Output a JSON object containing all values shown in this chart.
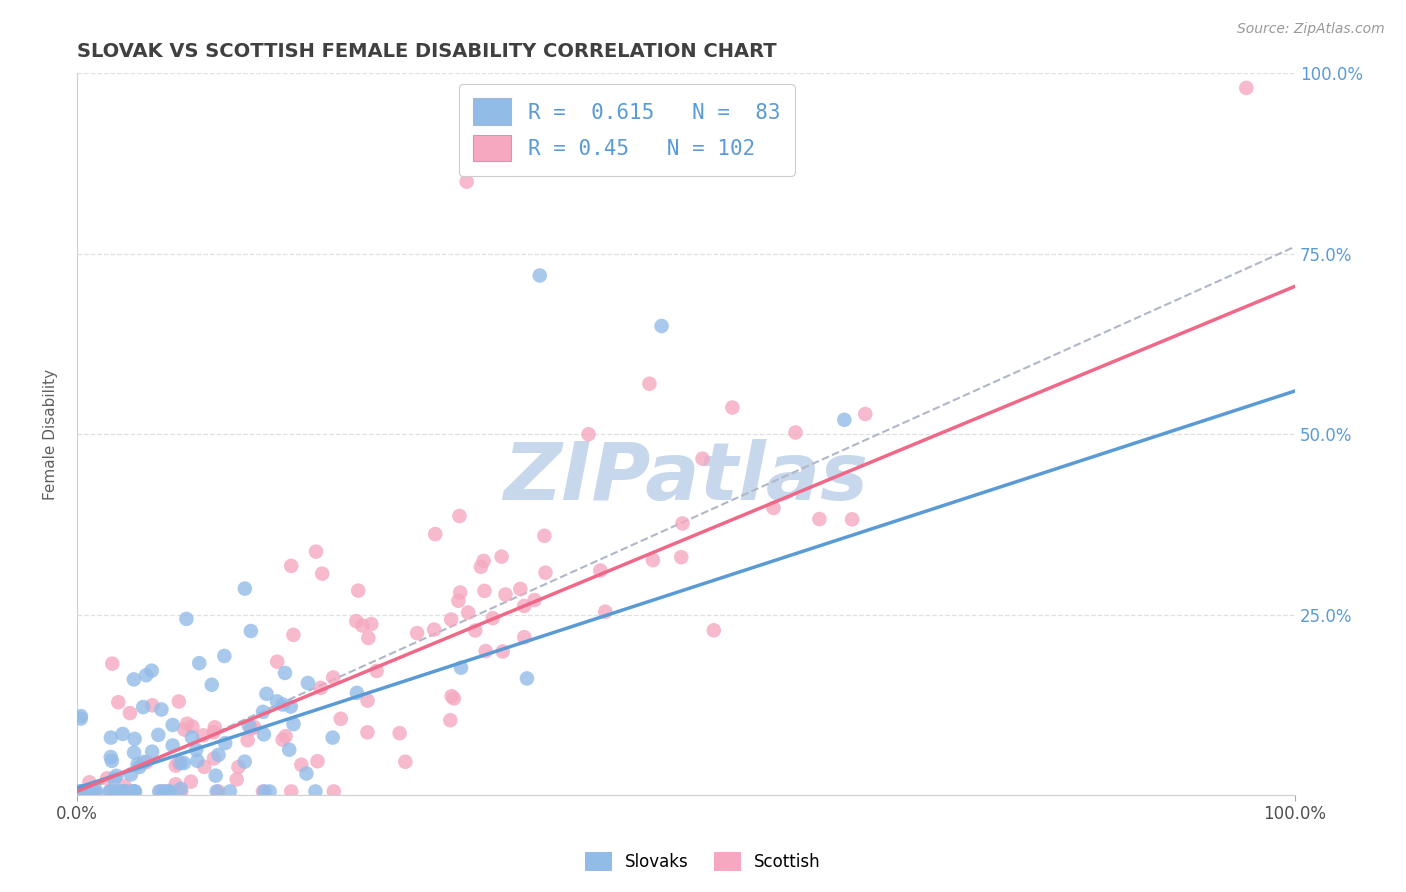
{
  "title": "SLOVAK VS SCOTTISH FEMALE DISABILITY CORRELATION CHART",
  "source_text": "Source: ZipAtlas.com",
  "ylabel": "Female Disability",
  "xlim": [
    0.0,
    1.0
  ],
  "ylim": [
    0.0,
    1.0
  ],
  "x_ticks": [
    0.0,
    1.0
  ],
  "x_tick_labels": [
    "0.0%",
    "100.0%"
  ],
  "y_ticks": [
    0.0,
    0.25,
    0.5,
    0.75,
    1.0
  ],
  "y_tick_labels": [
    "",
    "25.0%",
    "50.0%",
    "75.0%",
    "100.0%"
  ],
  "slovaks_R": 0.615,
  "slovaks_N": 83,
  "scottish_R": 0.45,
  "scottish_N": 102,
  "blue_color": "#92bce8",
  "pink_color": "#f5a8c0",
  "blue_line_color": "#5b9bd5",
  "pink_line_color": "#f06888",
  "dashed_line_color": "#b0b8c8",
  "title_color": "#404040",
  "title_fontsize": 14,
  "axis_label_color": "#606060",
  "tick_color_right": "#5b9bd5",
  "legend_text_color": "#5b9bd5",
  "watermark_text": "ZIPatlas",
  "watermark_color": "#c8d8ec",
  "background_color": "#ffffff",
  "grid_color": "#e0e0e0",
  "blue_line_slope": 0.55,
  "blue_line_intercept": 0.01,
  "pink_line_slope": 0.7,
  "pink_line_intercept": 0.005,
  "dashed_line_slope": 0.76,
  "dashed_line_intercept": 0.0
}
